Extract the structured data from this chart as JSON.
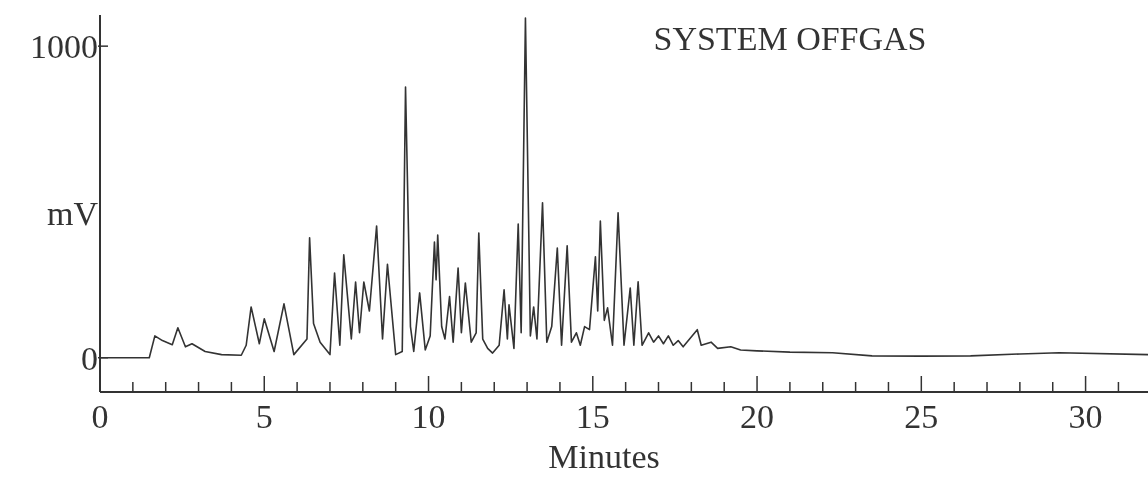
{
  "chart_data": {
    "type": "line",
    "title": "SYSTEM OFFGAS",
    "xlabel": "Minutes",
    "ylabel": "mV",
    "xlim": [
      0,
      31.9
    ],
    "ylim": [
      -110,
      1100
    ],
    "xticks": [
      0,
      {
        "value": 1,
        "label": null
      },
      {
        "value": 2,
        "label": null
      },
      {
        "value": 3,
        "label": null
      },
      {
        "value": 4,
        "label": null
      },
      5,
      {
        "value": 6,
        "label": null
      },
      {
        "value": 7,
        "label": null
      },
      {
        "value": 8,
        "label": null
      },
      {
        "value": 9,
        "label": null
      },
      10,
      {
        "value": 11,
        "label": null
      },
      {
        "value": 12,
        "label": null
      },
      {
        "value": 13,
        "label": null
      },
      {
        "value": 14,
        "label": null
      },
      15,
      {
        "value": 16,
        "label": null
      },
      {
        "value": 17,
        "label": null
      },
      {
        "value": 18,
        "label": null
      },
      {
        "value": 19,
        "label": null
      },
      20,
      {
        "value": 21,
        "label": null
      },
      {
        "value": 22,
        "label": null
      },
      {
        "value": 23,
        "label": null
      },
      {
        "value": 24,
        "label": null
      },
      25,
      {
        "value": 26,
        "label": null
      },
      {
        "value": 27,
        "label": null
      },
      {
        "value": 28,
        "label": null
      },
      {
        "value": 29,
        "label": null
      },
      30,
      {
        "value": 31,
        "label": null
      }
    ],
    "yticks": [
      0,
      1000
    ],
    "grid": false,
    "marker": "none",
    "line_style": "solid",
    "series": [
      {
        "color": "#333333",
        "x": [
          0,
          1.5,
          1.67,
          1.9,
          2.2,
          2.37,
          2.6,
          2.8,
          3.2,
          3.7,
          4.3,
          4.45,
          4.6,
          4.85,
          5.0,
          5.3,
          5.6,
          5.9,
          6.3,
          6.38,
          6.5,
          6.7,
          7.0,
          7.14,
          7.3,
          7.42,
          7.65,
          7.78,
          7.9,
          8.03,
          8.2,
          8.42,
          8.6,
          8.75,
          9.0,
          9.2,
          9.3,
          9.45,
          9.55,
          9.73,
          9.9,
          10.05,
          10.18,
          10.23,
          10.28,
          10.4,
          10.5,
          10.64,
          10.75,
          10.9,
          11.0,
          11.12,
          11.3,
          11.45,
          11.53,
          11.65,
          11.8,
          11.95,
          12.15,
          12.3,
          12.4,
          12.45,
          12.6,
          12.73,
          12.82,
          12.95,
          13.1,
          13.2,
          13.3,
          13.47,
          13.6,
          13.75,
          13.92,
          14.05,
          14.22,
          14.35,
          14.5,
          14.62,
          14.75,
          14.9,
          15.08,
          15.15,
          15.23,
          15.35,
          15.45,
          15.6,
          15.77,
          15.95,
          16.14,
          16.25,
          16.38,
          16.5,
          16.7,
          16.85,
          17.0,
          17.15,
          17.3,
          17.45,
          17.6,
          17.75,
          18.18,
          18.3,
          18.6,
          18.8,
          19.2,
          19.5,
          20,
          21,
          22.3,
          23.5,
          25,
          26.5,
          28,
          29.2,
          31.9
        ],
        "values": [
          0,
          0,
          70,
          55,
          42,
          96,
          35,
          45,
          20,
          10,
          8,
          40,
          163,
          45,
          125,
          20,
          173,
          10,
          60,
          385,
          110,
          50,
          10,
          272,
          40,
          330,
          60,
          243,
          80,
          243,
          150,
          423,
          60,
          300,
          10,
          20,
          869,
          100,
          20,
          208,
          25,
          70,
          371,
          250,
          394,
          100,
          60,
          196,
          50,
          288,
          80,
          240,
          50,
          80,
          400,
          60,
          30,
          15,
          40,
          218,
          60,
          170,
          30,
          429,
          80,
          1090,
          70,
          163,
          60,
          497,
          50,
          100,
          352,
          40,
          359,
          50,
          80,
          40,
          100,
          90,
          324,
          150,
          439,
          120,
          160,
          40,
          465,
          40,
          224,
          40,
          244,
          40,
          80,
          50,
          70,
          45,
          70,
          40,
          55,
          35,
          90,
          40,
          50,
          30,
          35,
          25,
          22,
          18,
          16,
          6,
          5,
          6,
          12,
          16,
          10
        ]
      }
    ]
  }
}
